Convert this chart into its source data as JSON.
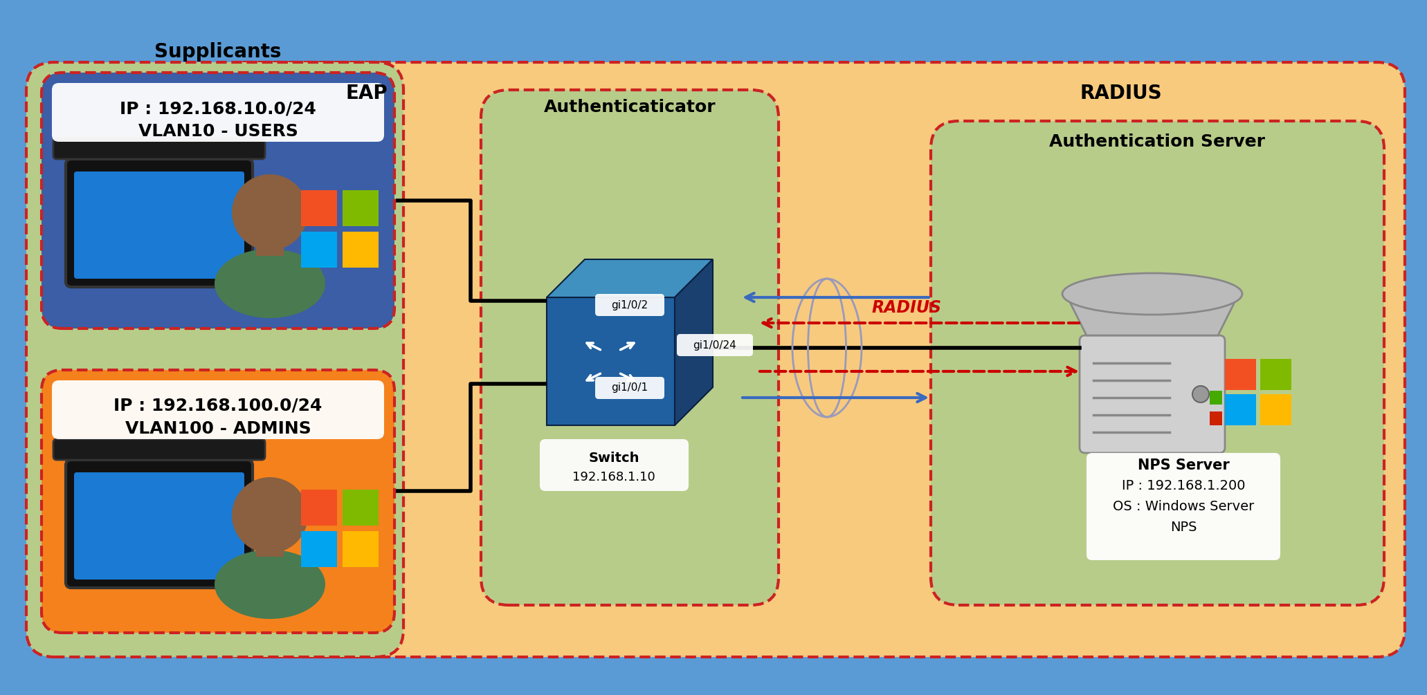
{
  "bg_color": "#5b9bd5",
  "eap_zone_color": "#f5c87a",
  "supplicants_zone_color": "#b8cc8a",
  "authenticator_zone_color": "#b8cc8a",
  "radius_zone_color": "#f5c87a",
  "auth_server_zone_color": "#b8cc8a",
  "admins_box_color": "#f5811c",
  "users_box_color": "#3b5ea6",
  "label_supplicants": "Supplicants",
  "label_authenticator": "Authenticaticator",
  "label_eap": "EAP",
  "label_radius_zone": "RADIUS",
  "label_auth_server": "Authentication Server",
  "label_admins_ip": "IP : 192.168.100.0/24",
  "label_admins_vlan": "VLAN100 - ADMINS",
  "label_users_ip": "IP : 192.168.10.0/24",
  "label_users_vlan": "VLAN10 - USERS",
  "label_switch1": "Switch",
  "label_switch2": "192.168.1.10",
  "label_gi101": "gi1/0/1",
  "label_gi102": "gi1/0/2",
  "label_gi1024": "gi1/0/24",
  "label_radius_arrow": "RADIUS",
  "ms_colors": [
    "#f25022",
    "#7fba00",
    "#00a4ef",
    "#ffb900"
  ],
  "switch_front_color": "#2060a0",
  "switch_top_color": "#4090c0",
  "switch_right_color": "#1a4070",
  "server_body_color": "#c8c8c8",
  "server_top_color": "#aaaaaa",
  "server_vent_color": "#888888"
}
